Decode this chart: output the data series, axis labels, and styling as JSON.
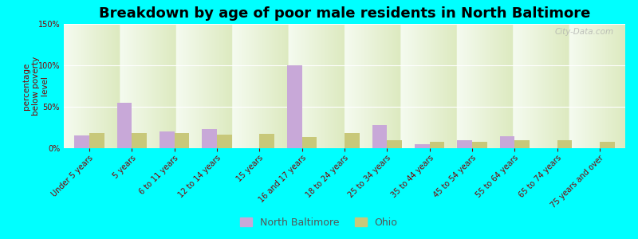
{
  "title": "Breakdown by age of poor male residents in North Baltimore",
  "ylabel": "percentage\nbelow poverty\nlevel",
  "categories": [
    "Under 5 years",
    "5 years",
    "6 to 11 years",
    "12 to 14 years",
    "15 years",
    "16 and 17 years",
    "18 to 24 years",
    "25 to 34 years",
    "35 to 44 years",
    "45 to 54 years",
    "55 to 64 years",
    "65 to 74 years",
    "75 years and over"
  ],
  "north_baltimore": [
    15,
    55,
    20,
    23,
    0,
    100,
    0,
    28,
    5,
    10,
    14,
    0,
    0
  ],
  "ohio": [
    18,
    18,
    18,
    16,
    17,
    13,
    18,
    10,
    8,
    8,
    10,
    10,
    8
  ],
  "nb_color": "#c8a8d8",
  "ohio_color": "#c8c87a",
  "bg_color": "#00ffff",
  "plot_bg_top": "#f5fbf0",
  "plot_bg_bottom": "#ddeac0",
  "ylim": [
    0,
    150
  ],
  "yticks": [
    0,
    50,
    100,
    150
  ],
  "ytick_labels": [
    "0%",
    "50%",
    "100%",
    "150%"
  ],
  "bar_width": 0.35,
  "title_fontsize": 13,
  "axis_label_fontsize": 7.5,
  "tick_fontsize": 7,
  "legend_fontsize": 9,
  "watermark": "City-Data.com"
}
